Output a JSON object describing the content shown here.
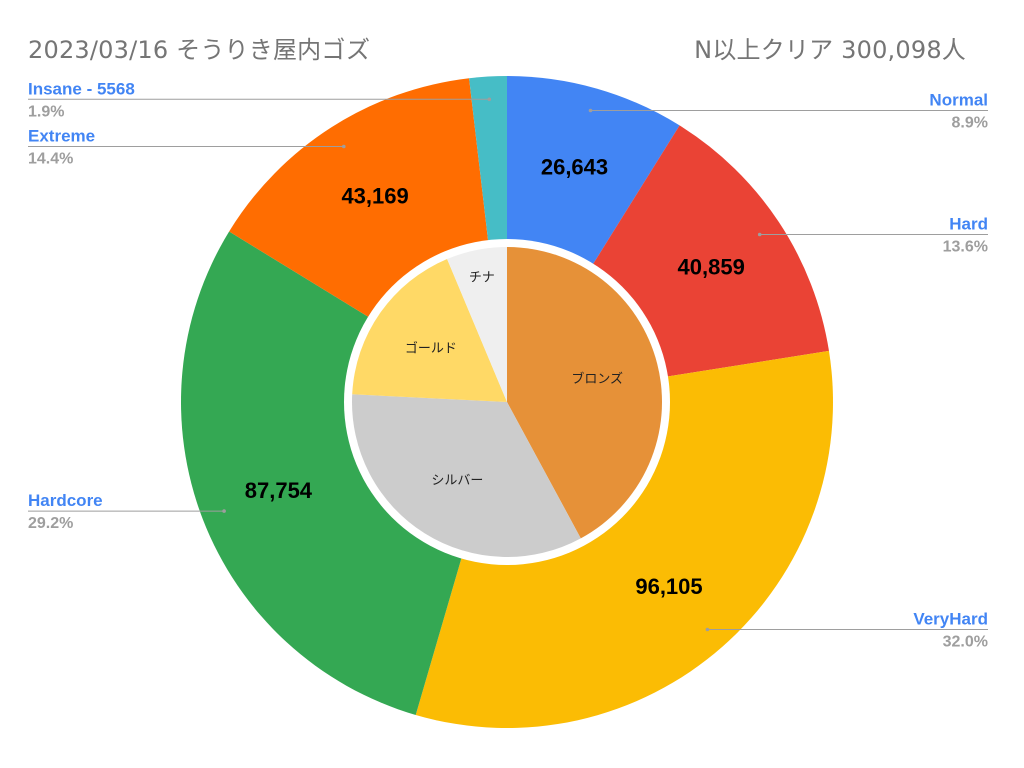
{
  "header": {
    "title": "2023/03/16 そうりき屋内ゴズ",
    "subtitle": "N以上クリア 300,098人"
  },
  "chart_data": {
    "type": "pie",
    "variant": "double-donut",
    "legend": "none",
    "outer": {
      "slices": [
        {
          "name": "Normal",
          "value": 26643,
          "value_label": "26,643",
          "percent": "8.9%",
          "color": "#4285f4"
        },
        {
          "name": "Hard",
          "value": 40859,
          "value_label": "40,859",
          "percent": "13.6%",
          "color": "#ea4335"
        },
        {
          "name": "VeryHard",
          "value": 96105,
          "value_label": "96,105",
          "percent": "32.0%",
          "color": "#fbbc04"
        },
        {
          "name": "Hardcore",
          "value": 87754,
          "value_label": "87,754",
          "percent": "29.2%",
          "color": "#34a853"
        },
        {
          "name": "Extreme",
          "value": 43169,
          "value_label": "43,169",
          "percent": "14.4%",
          "color": "#ff6d01"
        },
        {
          "name": "Insane - 5568",
          "value": 5568,
          "value_label": "",
          "percent": "1.9%",
          "color": "#46bdc6"
        }
      ]
    },
    "inner": {
      "slices": [
        {
          "name": "ブロンズ",
          "value": 40,
          "color": "#e69138"
        },
        {
          "name": "シルバー",
          "value": 32,
          "color": "#cccccc"
        },
        {
          "name": "ゴールド",
          "value": 17,
          "color": "#ffd966"
        },
        {
          "name": "チナ",
          "value": 6,
          "color": "#efefef"
        }
      ]
    },
    "label_color": "#4285f4",
    "percent_color": "#9e9e9e"
  }
}
